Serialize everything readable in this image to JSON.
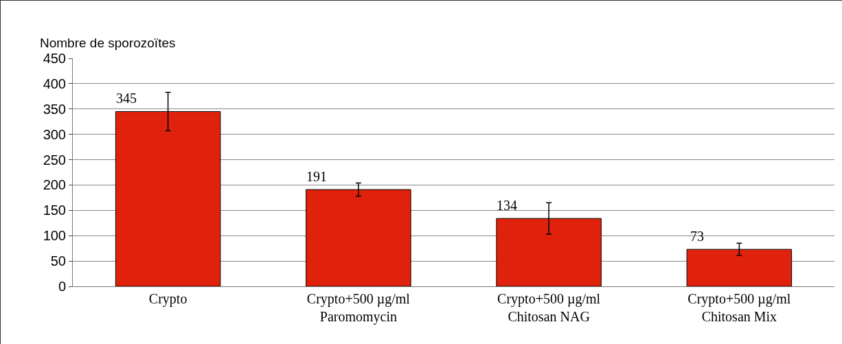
{
  "chart_data": {
    "type": "bar",
    "ylabel": "Nombre de sporozoïtes",
    "categories": [
      "Crypto",
      "Crypto+500 µg/ml\nParomomycin",
      "Crypto+500 µg/ml\nChitosan NAG",
      "Crypto+500 µg/ml\nChitosan Mix"
    ],
    "values": [
      345,
      191,
      134,
      73
    ],
    "errors": [
      38,
      13,
      31,
      12
    ],
    "color": "#e0220c",
    "ylim": [
      0,
      450
    ],
    "yticks": [
      0,
      50,
      100,
      150,
      200,
      250,
      300,
      350,
      400,
      450
    ],
    "grid": "y",
    "data_labels": true,
    "legend": false
  }
}
